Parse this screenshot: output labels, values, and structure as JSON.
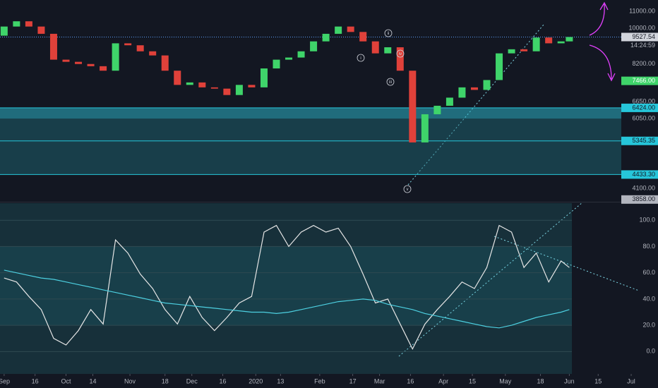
{
  "chart_data": [
    {
      "type": "candlestick",
      "x": [
        "2019-09-01",
        "2019-09-07",
        "2019-09-13",
        "2019-09-19",
        "2019-09-25",
        "2019-10-01",
        "2019-10-07",
        "2019-10-13",
        "2019-10-19",
        "2019-10-25",
        "2019-10-31",
        "2019-11-06",
        "2019-11-12",
        "2019-11-18",
        "2019-11-24",
        "2019-11-30",
        "2019-12-06",
        "2019-12-12",
        "2019-12-18",
        "2019-12-24",
        "2019-12-30",
        "2020-01-05",
        "2020-01-11",
        "2020-01-17",
        "2020-01-23",
        "2020-01-29",
        "2020-02-04",
        "2020-02-10",
        "2020-02-16",
        "2020-02-22",
        "2020-02-28",
        "2020-03-05",
        "2020-03-11",
        "2020-03-17",
        "2020-03-23",
        "2020-03-29",
        "2020-04-04",
        "2020-04-10",
        "2020-04-16",
        "2020-04-22",
        "2020-04-28",
        "2020-05-04",
        "2020-05-10",
        "2020-05-16",
        "2020-05-22",
        "2020-05-28",
        "2020-06-01"
      ],
      "open": [
        9600,
        10100,
        10400,
        10100,
        9700,
        8400,
        8300,
        8200,
        8100,
        7900,
        9200,
        9100,
        8800,
        8600,
        7900,
        7300,
        7400,
        7200,
        7150,
        6900,
        7300,
        7200,
        8000,
        8400,
        8500,
        8800,
        9300,
        9700,
        10100,
        9800,
        9300,
        8700,
        9000,
        7900,
        5300,
        6200,
        6500,
        6800,
        7200,
        7100,
        7500,
        8700,
        8900,
        8800,
        9500,
        9200,
        9300
      ],
      "close": [
        10100,
        10400,
        10100,
        9700,
        8400,
        8300,
        8200,
        8100,
        7900,
        9200,
        9100,
        8800,
        8600,
        7900,
        7300,
        7400,
        7200,
        7150,
        6900,
        7300,
        7200,
        8000,
        8400,
        8500,
        8800,
        9300,
        9700,
        10100,
        9800,
        9300,
        8700,
        9000,
        7900,
        5300,
        6200,
        6500,
        6800,
        7200,
        7100,
        7500,
        8700,
        8900,
        8800,
        9500,
        9200,
        9300,
        9527.54
      ],
      "up_color": "#3fd46a",
      "down_color": "#e0413a",
      "xlim": [
        "2019-08-30",
        "2020-07-14"
      ],
      "ylim": [
        3825,
        11616
      ],
      "log_scale": true,
      "yticks": [
        {
          "value": 11000,
          "label": "11000.00"
        },
        {
          "value": 10000,
          "label": "10000.00"
        },
        {
          "value": 8200,
          "label": "8200.00"
        },
        {
          "value": 6650,
          "label": "6650.00"
        },
        {
          "value": 6050,
          "label": "6050.00"
        },
        {
          "value": 4100,
          "label": "4100.00"
        }
      ],
      "current_price": {
        "value": 9527.54,
        "label": "9527.54",
        "color": "#d1d4dc"
      },
      "countdown": "14:24:59",
      "levels": [
        {
          "value": 7466,
          "label": "7466.00",
          "color": "#3fd46a"
        },
        {
          "value": 6424,
          "label": "6424.00",
          "color": "#26c6da"
        },
        {
          "value": 5345.35,
          "label": "5345.35",
          "color": "#26c6da"
        },
        {
          "value": 4433.3,
          "label": "4433.30",
          "color": "#26c6da"
        },
        {
          "value": 3858,
          "label": "3858.00",
          "color": "#b2b5be"
        }
      ],
      "annotations": [
        "i",
        "ii",
        "iii",
        "iv",
        "v"
      ]
    },
    {
      "type": "line",
      "x": [
        "2019-09-01",
        "2019-09-07",
        "2019-09-13",
        "2019-09-19",
        "2019-09-25",
        "2019-10-01",
        "2019-10-07",
        "2019-10-13",
        "2019-10-19",
        "2019-10-25",
        "2019-10-31",
        "2019-11-06",
        "2019-11-12",
        "2019-11-18",
        "2019-11-24",
        "2019-11-30",
        "2019-12-06",
        "2019-12-12",
        "2019-12-18",
        "2019-12-24",
        "2019-12-30",
        "2020-01-05",
        "2020-01-11",
        "2020-01-17",
        "2020-01-23",
        "2020-01-29",
        "2020-02-04",
        "2020-02-10",
        "2020-02-16",
        "2020-02-22",
        "2020-02-28",
        "2020-03-05",
        "2020-03-11",
        "2020-03-17",
        "2020-03-23",
        "2020-03-29",
        "2020-04-04",
        "2020-04-10",
        "2020-04-16",
        "2020-04-22",
        "2020-04-28",
        "2020-05-04",
        "2020-05-10",
        "2020-05-16",
        "2020-05-22",
        "2020-05-28",
        "2020-06-01"
      ],
      "series": [
        {
          "color": "#e6e6e6",
          "values": [
            56,
            53,
            42,
            32,
            10,
            5,
            16,
            32,
            21,
            85,
            75,
            59,
            48,
            32,
            21,
            42,
            26,
            16,
            26,
            37,
            42,
            91,
            96,
            80,
            91,
            96,
            91,
            94,
            80,
            59,
            37,
            40,
            21,
            2,
            21,
            32,
            42,
            53,
            48,
            64,
            96,
            91,
            64,
            75,
            53,
            69,
            64
          ]
        },
        {
          "color": "#4dd0e1",
          "values": [
            62,
            60,
            58,
            56,
            55,
            53,
            51,
            49,
            47,
            45,
            43,
            41,
            39,
            37,
            36,
            35,
            34,
            33,
            32,
            31,
            30,
            30,
            29,
            30,
            32,
            34,
            36,
            38,
            39,
            40,
            39,
            36,
            34,
            32,
            29,
            27,
            25,
            23,
            21,
            19,
            18,
            20,
            23,
            26,
            28,
            30,
            32
          ]
        }
      ],
      "xlim": [
        "2019-08-30",
        "2020-07-14"
      ],
      "ylim": [
        -17,
        113
      ],
      "yticks": [
        {
          "value": 100,
          "label": "100.0"
        },
        {
          "value": 80,
          "label": "80.0"
        },
        {
          "value": 60,
          "label": "60.0"
        },
        {
          "value": 40,
          "label": "40.0"
        },
        {
          "value": 20,
          "label": "20.0"
        },
        {
          "value": 0,
          "label": "0.0"
        }
      ],
      "grid": true,
      "xticks": [
        {
          "value": "2019-09-01",
          "label": "Sep"
        },
        {
          "value": "2019-09-16",
          "label": "16"
        },
        {
          "value": "2019-10-01",
          "label": "Oct"
        },
        {
          "value": "2019-10-14",
          "label": "14"
        },
        {
          "value": "2019-11-01",
          "label": "Nov"
        },
        {
          "value": "2019-11-18",
          "label": "18"
        },
        {
          "value": "2019-12-01",
          "label": "Dec"
        },
        {
          "value": "2019-12-16",
          "label": "16"
        },
        {
          "value": "2020-01-01",
          "label": "2020"
        },
        {
          "value": "2020-01-13",
          "label": "13"
        },
        {
          "value": "2020-02-01",
          "label": "Feb"
        },
        {
          "value": "2020-02-17",
          "label": "17"
        },
        {
          "value": "2020-03-01",
          "label": "Mar"
        },
        {
          "value": "2020-03-16",
          "label": "16"
        },
        {
          "value": "2020-04-01",
          "label": "Apr"
        },
        {
          "value": "2020-04-15",
          "label": "15"
        },
        {
          "value": "2020-05-01",
          "label": "May"
        },
        {
          "value": "2020-05-18",
          "label": "18"
        },
        {
          "value": "2020-06-01",
          "label": "Jun"
        },
        {
          "value": "2020-06-15",
          "label": "15"
        },
        {
          "value": "2020-07-01",
          "label": "Jul"
        }
      ]
    }
  ]
}
